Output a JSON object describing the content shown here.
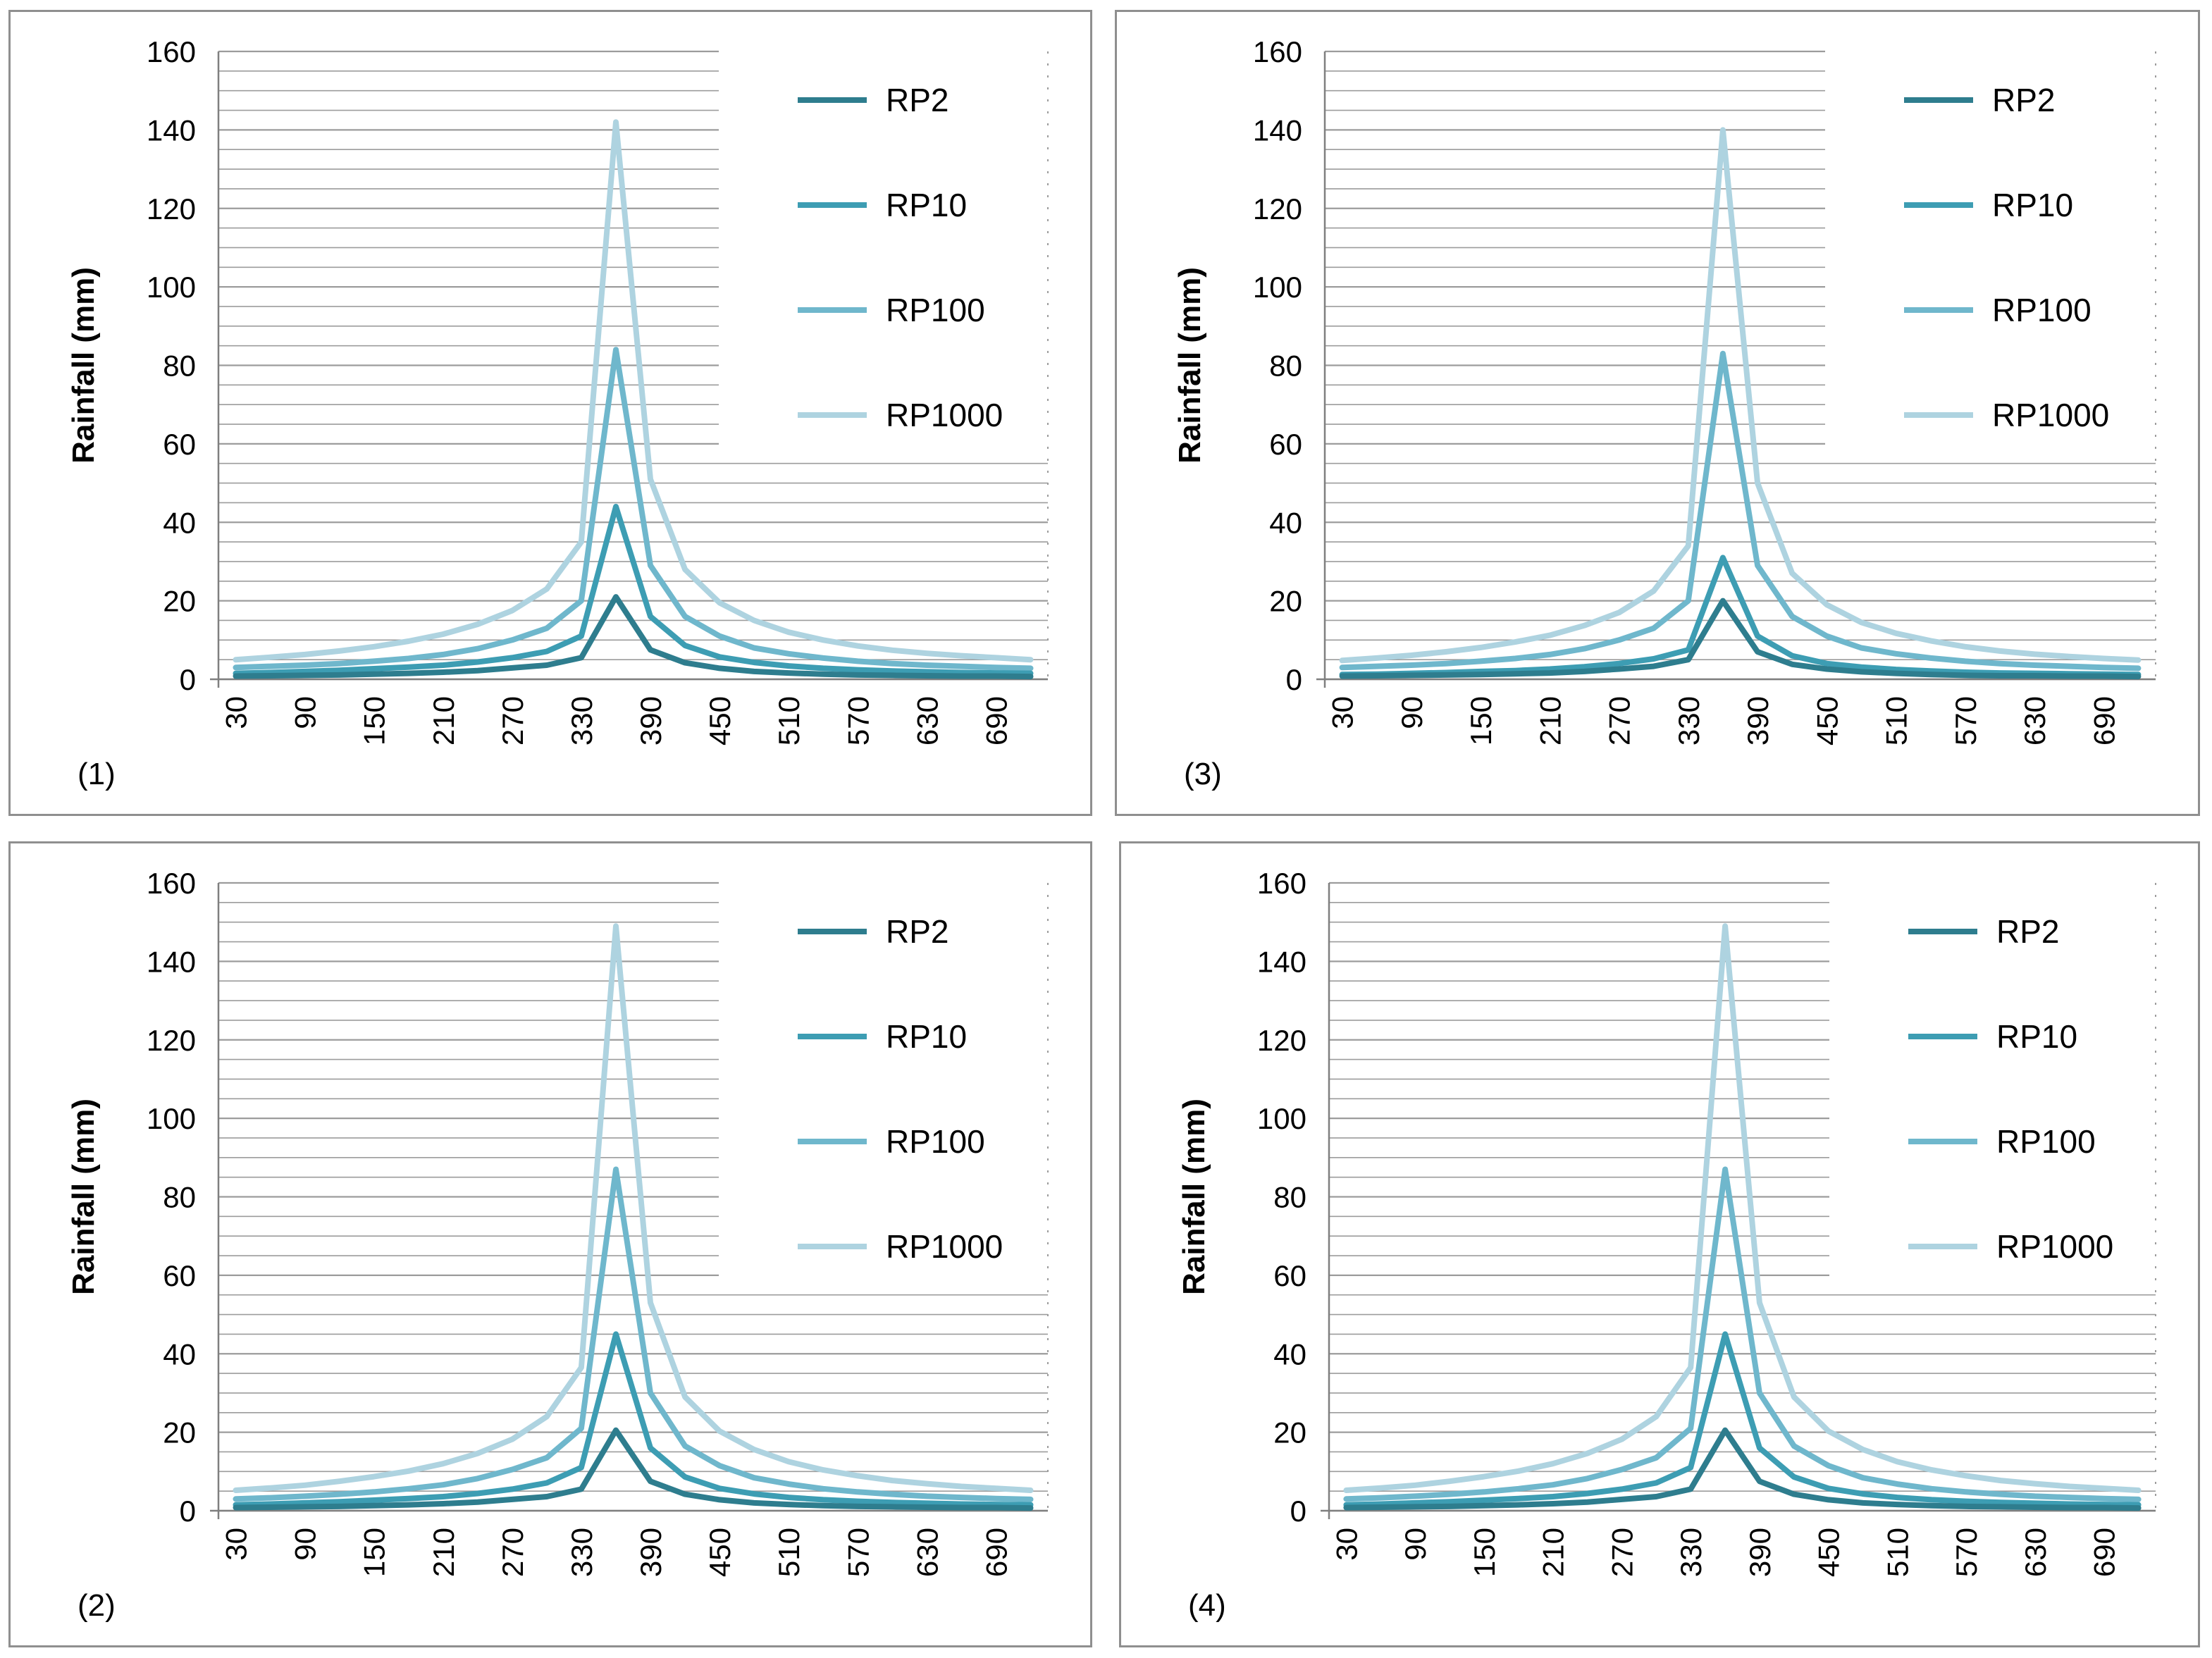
{
  "colors": {
    "RP2": "#2e7d8e",
    "RP10": "#3d9db3",
    "RP100": "#6fb7cc",
    "RP1000": "#aed3e0",
    "grid": "#9c9c9c",
    "axis": "#7f7f7f",
    "background": "#ffffff"
  },
  "chart_data": [
    {
      "id": "(1)",
      "type": "line",
      "title": "",
      "xlabel": "",
      "ylabel": "Rainfall (mm)",
      "ylim": [
        0,
        160
      ],
      "yticks": [
        0,
        20,
        40,
        60,
        80,
        100,
        120,
        140,
        160
      ],
      "minor_grid_step": 5,
      "x": [
        30,
        60,
        90,
        120,
        150,
        180,
        210,
        240,
        270,
        300,
        330,
        360,
        390,
        420,
        450,
        480,
        510,
        540,
        570,
        600,
        630,
        660,
        690,
        720
      ],
      "xtick_labels": [
        "30",
        "90",
        "150",
        "210",
        "270",
        "330",
        "390",
        "450",
        "510",
        "570",
        "630",
        "690"
      ],
      "legend_position": "top-right",
      "series": [
        {
          "name": "RP2",
          "values": [
            0.8,
            0.9,
            1.0,
            1.1,
            1.3,
            1.5,
            1.8,
            2.2,
            2.9,
            3.6,
            5.5,
            21.0,
            7.5,
            4.2,
            2.8,
            2.0,
            1.6,
            1.3,
            1.1,
            1.0,
            0.9,
            0.8,
            0.8,
            0.7
          ]
        },
        {
          "name": "RP10",
          "values": [
            1.5,
            1.7,
            2.0,
            2.3,
            2.7,
            3.1,
            3.6,
            4.4,
            5.5,
            7.1,
            11.0,
            44.0,
            16.0,
            8.6,
            5.7,
            4.3,
            3.4,
            2.8,
            2.4,
            2.1,
            1.9,
            1.7,
            1.6,
            1.5
          ]
        },
        {
          "name": "RP100",
          "values": [
            3.0,
            3.3,
            3.6,
            4.0,
            4.6,
            5.3,
            6.3,
            7.8,
            10.0,
            13.0,
            20.0,
            84.0,
            29.0,
            16.0,
            11.0,
            8.0,
            6.5,
            5.4,
            4.6,
            4.0,
            3.6,
            3.3,
            3.0,
            2.8
          ]
        },
        {
          "name": "RP1000",
          "values": [
            5.0,
            5.6,
            6.3,
            7.2,
            8.3,
            9.7,
            11.5,
            14.0,
            17.5,
            23.0,
            35.0,
            142.0,
            51.0,
            28.0,
            19.5,
            15.0,
            12.0,
            10.0,
            8.5,
            7.4,
            6.6,
            6.0,
            5.5,
            5.0
          ]
        }
      ]
    },
    {
      "id": "(3)",
      "type": "line",
      "title": "",
      "xlabel": "",
      "ylabel": "Rainfall (mm)",
      "ylim": [
        0,
        160
      ],
      "yticks": [
        0,
        20,
        40,
        60,
        80,
        100,
        120,
        140,
        160
      ],
      "minor_grid_step": 5,
      "x": [
        30,
        60,
        90,
        120,
        150,
        180,
        210,
        240,
        270,
        300,
        330,
        360,
        390,
        420,
        450,
        480,
        510,
        540,
        570,
        600,
        630,
        660,
        690,
        720
      ],
      "xtick_labels": [
        "30",
        "90",
        "150",
        "210",
        "270",
        "330",
        "390",
        "450",
        "510",
        "570",
        "630",
        "690"
      ],
      "legend_position": "top-right",
      "series": [
        {
          "name": "RP2",
          "values": [
            0.8,
            0.9,
            1.0,
            1.1,
            1.2,
            1.4,
            1.6,
            2.0,
            2.6,
            3.3,
            5.0,
            20.0,
            7.0,
            3.8,
            2.6,
            1.9,
            1.5,
            1.2,
            1.0,
            0.9,
            0.9,
            0.8,
            0.8,
            0.7
          ]
        },
        {
          "name": "RP10",
          "values": [
            1.2,
            1.3,
            1.5,
            1.7,
            2.0,
            2.2,
            2.6,
            3.2,
            4.0,
            5.2,
            7.5,
            31.0,
            11.0,
            6.0,
            4.0,
            3.1,
            2.5,
            2.1,
            1.8,
            1.6,
            1.5,
            1.4,
            1.3,
            1.2
          ]
        },
        {
          "name": "RP100",
          "values": [
            3.0,
            3.3,
            3.6,
            4.0,
            4.6,
            5.3,
            6.3,
            7.8,
            10.0,
            13.0,
            20.0,
            83.0,
            29.0,
            16.0,
            11.0,
            8.0,
            6.5,
            5.4,
            4.6,
            4.0,
            3.6,
            3.3,
            3.0,
            2.8
          ]
        },
        {
          "name": "RP1000",
          "values": [
            4.8,
            5.4,
            6.1,
            7.0,
            8.1,
            9.5,
            11.2,
            13.7,
            17.0,
            22.5,
            34.0,
            140.0,
            50.0,
            27.0,
            19.0,
            14.5,
            11.7,
            9.8,
            8.3,
            7.2,
            6.4,
            5.8,
            5.3,
            4.9
          ]
        }
      ]
    },
    {
      "id": "(2)",
      "type": "line",
      "title": "",
      "xlabel": "",
      "ylabel": "Rainfall (mm)",
      "ylim": [
        0,
        160
      ],
      "yticks": [
        0,
        20,
        40,
        60,
        80,
        100,
        120,
        140,
        160
      ],
      "minor_grid_step": 5,
      "x": [
        30,
        60,
        90,
        120,
        150,
        180,
        210,
        240,
        270,
        300,
        330,
        360,
        390,
        420,
        450,
        480,
        510,
        540,
        570,
        600,
        630,
        660,
        690,
        720
      ],
      "xtick_labels": [
        "30",
        "90",
        "150",
        "210",
        "270",
        "330",
        "390",
        "450",
        "510",
        "570",
        "630",
        "690"
      ],
      "legend_position": "top-right",
      "series": [
        {
          "name": "RP2",
          "values": [
            0.8,
            0.9,
            1.0,
            1.1,
            1.3,
            1.5,
            1.8,
            2.2,
            2.9,
            3.6,
            5.5,
            20.5,
            7.5,
            4.2,
            2.8,
            2.0,
            1.6,
            1.3,
            1.1,
            1.0,
            0.9,
            0.8,
            0.8,
            0.7
          ]
        },
        {
          "name": "RP10",
          "values": [
            1.5,
            1.7,
            2.0,
            2.3,
            2.7,
            3.1,
            3.6,
            4.4,
            5.5,
            7.1,
            11.0,
            45.0,
            16.0,
            8.6,
            5.7,
            4.3,
            3.4,
            2.8,
            2.4,
            2.1,
            1.9,
            1.7,
            1.6,
            1.5
          ]
        },
        {
          "name": "RP100",
          "values": [
            3.0,
            3.3,
            3.7,
            4.2,
            4.8,
            5.6,
            6.6,
            8.2,
            10.5,
            13.5,
            21.0,
            87.0,
            30.0,
            16.5,
            11.5,
            8.4,
            6.8,
            5.6,
            4.8,
            4.2,
            3.7,
            3.4,
            3.1,
            2.9
          ]
        },
        {
          "name": "RP1000",
          "values": [
            5.2,
            5.8,
            6.5,
            7.5,
            8.7,
            10.1,
            12.0,
            14.6,
            18.2,
            24.0,
            36.5,
            149.0,
            53.0,
            29.0,
            20.3,
            15.6,
            12.5,
            10.4,
            8.9,
            7.7,
            6.9,
            6.2,
            5.7,
            5.2
          ]
        }
      ]
    },
    {
      "id": "(4)",
      "type": "line",
      "title": "",
      "xlabel": "",
      "ylabel": "Rainfall (mm)",
      "ylim": [
        0,
        160
      ],
      "yticks": [
        0,
        20,
        40,
        60,
        80,
        100,
        120,
        140,
        160
      ],
      "minor_grid_step": 5,
      "x": [
        30,
        60,
        90,
        120,
        150,
        180,
        210,
        240,
        270,
        300,
        330,
        360,
        390,
        420,
        450,
        480,
        510,
        540,
        570,
        600,
        630,
        660,
        690,
        720
      ],
      "xtick_labels": [
        "30",
        "90",
        "150",
        "210",
        "270",
        "330",
        "390",
        "450",
        "510",
        "570",
        "630",
        "690"
      ],
      "legend_position": "top-right",
      "series": [
        {
          "name": "RP2",
          "values": [
            0.8,
            0.9,
            1.0,
            1.1,
            1.3,
            1.5,
            1.8,
            2.2,
            2.9,
            3.6,
            5.5,
            20.5,
            7.5,
            4.2,
            2.8,
            2.0,
            1.6,
            1.3,
            1.1,
            1.0,
            0.9,
            0.8,
            0.8,
            0.7
          ]
        },
        {
          "name": "RP10",
          "values": [
            1.5,
            1.7,
            2.0,
            2.3,
            2.7,
            3.1,
            3.6,
            4.4,
            5.5,
            7.1,
            11.0,
            45.0,
            16.0,
            8.6,
            5.7,
            4.3,
            3.4,
            2.8,
            2.4,
            2.1,
            1.9,
            1.7,
            1.6,
            1.5
          ]
        },
        {
          "name": "RP100",
          "values": [
            3.0,
            3.3,
            3.7,
            4.2,
            4.8,
            5.6,
            6.6,
            8.2,
            10.5,
            13.5,
            21.0,
            87.0,
            30.0,
            16.5,
            11.5,
            8.4,
            6.8,
            5.6,
            4.8,
            4.2,
            3.7,
            3.4,
            3.1,
            2.9
          ]
        },
        {
          "name": "RP1000",
          "values": [
            5.2,
            5.8,
            6.5,
            7.5,
            8.7,
            10.1,
            12.0,
            14.6,
            18.2,
            24.0,
            36.5,
            149.0,
            53.0,
            29.0,
            20.3,
            15.6,
            12.5,
            10.4,
            8.9,
            7.7,
            6.9,
            6.2,
            5.7,
            5.2
          ]
        }
      ]
    }
  ]
}
